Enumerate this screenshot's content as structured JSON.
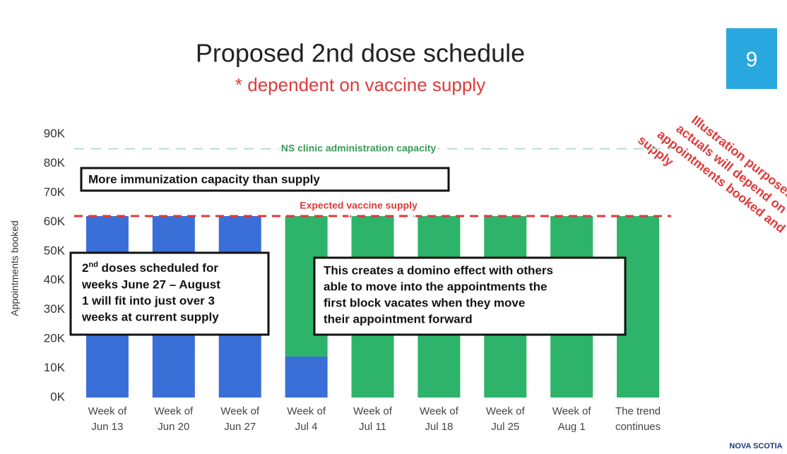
{
  "chart_data": {
    "type": "stacked_bar",
    "title": "Proposed 2nd dose schedule",
    "subtitle": "* dependent on vaccine supply",
    "y_axis_label": "Appointments booked",
    "categories": [
      [
        "Week of",
        "Jun 13"
      ],
      [
        "Week of",
        "Jun 20"
      ],
      [
        "Week of",
        "Jun 27"
      ],
      [
        "Week of",
        "Jul 4"
      ],
      [
        "Week of",
        "Jul 11"
      ],
      [
        "Week of",
        "Jul 18"
      ],
      [
        "Week of",
        "Jul 25"
      ],
      [
        "Week of",
        "Aug 1"
      ],
      [
        "The trend",
        "continues"
      ]
    ],
    "series": [
      {
        "color": "#3a6fd8",
        "values": [
          62000,
          62000,
          62000,
          14000,
          0,
          0,
          0,
          0,
          0
        ]
      },
      {
        "color": "#2db36a",
        "values": [
          0,
          0,
          0,
          48000,
          62000,
          62000,
          62000,
          62000,
          62000
        ]
      }
    ],
    "ylim": [
      0,
      90000
    ],
    "yticks": [
      {
        "value": 0,
        "label": "0K"
      },
      {
        "value": 10000,
        "label": "10K"
      },
      {
        "value": 20000,
        "label": "20K"
      },
      {
        "value": 30000,
        "label": "30K"
      },
      {
        "value": 40000,
        "label": "40K"
      },
      {
        "value": 50000,
        "label": "50K"
      },
      {
        "value": 60000,
        "label": "60K"
      },
      {
        "value": 70000,
        "label": "70K"
      },
      {
        "value": 80000,
        "label": "80K"
      },
      {
        "value": 90000,
        "label": "90K"
      }
    ],
    "reference_lines": [
      {
        "value": 85000,
        "label": "NS clinic administration capacity",
        "color": "#b6ddd0",
        "label_color": "#3a9a5a"
      },
      {
        "value": 62000,
        "label": "Expected vaccine supply",
        "color": "#e03a3a",
        "label_color": "#e03a3a"
      }
    ],
    "annotations": {
      "top_box": "More immunization capacity than supply",
      "left_box": {
        "prefix": "2",
        "sup": "nd",
        "lines": [
          " doses scheduled for",
          "weeks June 27 – August",
          "1 will fit into just over 3",
          "weeks at current supply"
        ]
      },
      "right_box": [
        "This creates a domino effect with others",
        "able to move into the appointments the",
        "first block vacates when they move",
        "their appointment forward"
      ],
      "note": [
        "Illustration purposes –",
        "actuals will depend on",
        "appointments booked and",
        "supply"
      ]
    }
  },
  "page_number": "9",
  "logo": "NOVA SCOTIA"
}
